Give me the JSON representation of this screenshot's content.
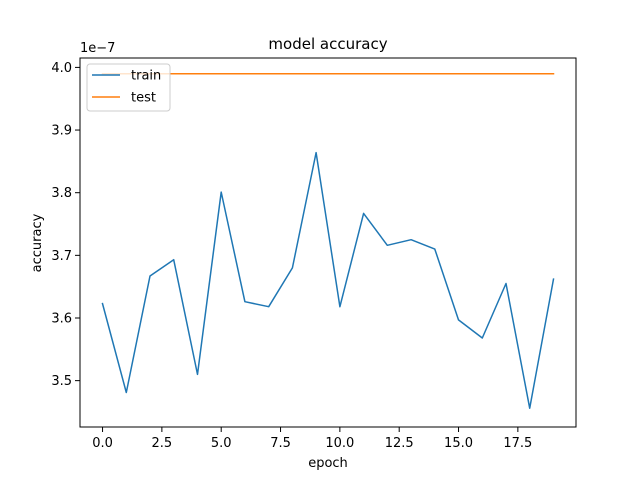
{
  "chart_data": {
    "type": "line",
    "title": "model accuracy",
    "xlabel": "epoch",
    "ylabel": "accuracy",
    "offset_text": "1e−7",
    "y_scale_factor": 1e-07,
    "xlim": [
      -0.95,
      19.95
    ],
    "ylim": [
      3.426,
      4.015
    ],
    "x_ticks": [
      0.0,
      2.5,
      5.0,
      7.5,
      10.0,
      12.5,
      15.0,
      17.5
    ],
    "x_tick_labels": [
      "0.0",
      "2.5",
      "5.0",
      "7.5",
      "10.0",
      "12.5",
      "15.0",
      "17.5"
    ],
    "y_ticks": [
      3.5,
      3.6,
      3.7,
      3.8,
      3.9,
      4.0
    ],
    "y_tick_labels": [
      "3.5",
      "3.6",
      "3.7",
      "3.8",
      "3.9",
      "4.0"
    ],
    "legend_position": "upper left",
    "grid": false,
    "series": [
      {
        "name": "train",
        "color": "#1f77b4",
        "x": [
          0,
          1,
          2,
          3,
          4,
          5,
          6,
          7,
          8,
          9,
          10,
          11,
          12,
          13,
          14,
          15,
          16,
          17,
          18,
          19
        ],
        "values": [
          3.623,
          3.481,
          3.667,
          3.693,
          3.51,
          3.801,
          3.626,
          3.618,
          3.68,
          3.864,
          3.618,
          3.767,
          3.716,
          3.725,
          3.71,
          3.597,
          3.568,
          3.655,
          3.456,
          3.662
        ]
      },
      {
        "name": "test",
        "color": "#ff7f0e",
        "x": [
          0,
          1,
          2,
          3,
          4,
          5,
          6,
          7,
          8,
          9,
          10,
          11,
          12,
          13,
          14,
          15,
          16,
          17,
          18,
          19
        ],
        "values": [
          3.99,
          3.99,
          3.99,
          3.99,
          3.99,
          3.99,
          3.99,
          3.99,
          3.99,
          3.99,
          3.99,
          3.99,
          3.99,
          3.99,
          3.99,
          3.99,
          3.99,
          3.99,
          3.99,
          3.99
        ]
      }
    ]
  }
}
